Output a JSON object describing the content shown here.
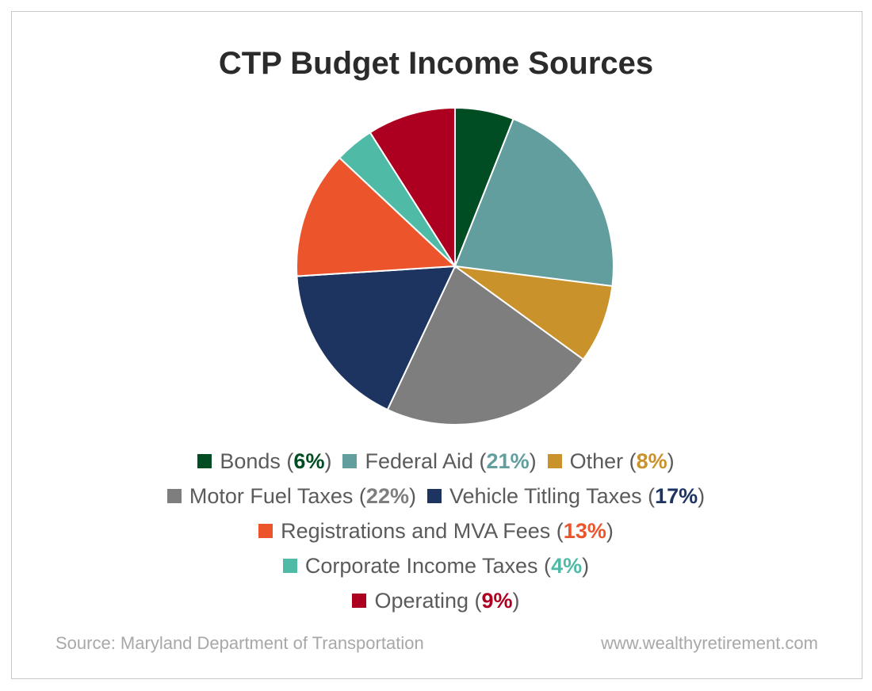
{
  "chart_data": {
    "type": "pie",
    "title": "CTP Budget Income Sources",
    "slices": [
      {
        "label": "Bonds",
        "value": 6,
        "value_text": "6%",
        "color": "#004d23"
      },
      {
        "label": "Federal Aid",
        "value": 21,
        "value_text": "21%",
        "color": "#639e9e"
      },
      {
        "label": "Other",
        "value": 8,
        "value_text": "8%",
        "color": "#c9922a"
      },
      {
        "label": "Motor Fuel Taxes",
        "value": 22,
        "value_text": "22%",
        "color": "#7e7e7e"
      },
      {
        "label": "Vehicle Titling Taxes",
        "value": 17,
        "value_text": "17%",
        "color": "#1d3461"
      },
      {
        "label": "Registrations and MVA Fees",
        "value": 13,
        "value_text": "13%",
        "color": "#ec552c"
      },
      {
        "label": "Corporate Income Taxes",
        "value": 4,
        "value_text": "4%",
        "color": "#4fbba6"
      },
      {
        "label": "Operating",
        "value": 9,
        "value_text": "9%",
        "color": "#ad0021"
      }
    ],
    "legend_rows": [
      [
        0,
        1,
        2
      ],
      [
        3,
        4
      ],
      [
        5
      ],
      [
        6
      ],
      [
        7
      ]
    ],
    "legend_placement": "bottom"
  },
  "footer": {
    "source": "Source: Maryland Department of Transportation",
    "website": "www.wealthyretirement.com"
  }
}
